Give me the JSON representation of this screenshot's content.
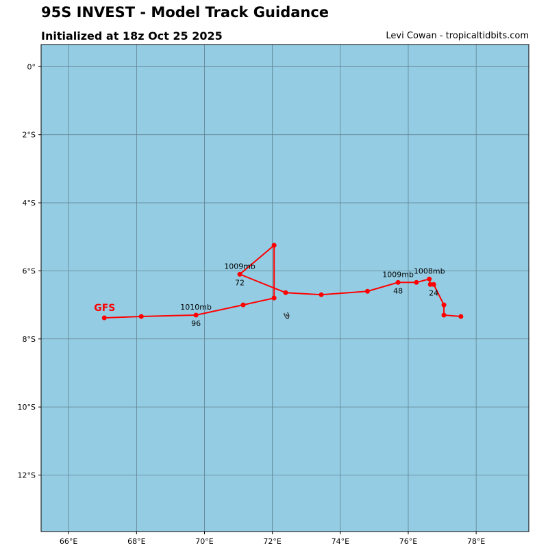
{
  "header": {
    "title": "95S INVEST - Model Track Guidance",
    "subtitle": "Initialized at 18z Oct 25 2025",
    "credit": "Levi Cowan - tropicaltidbits.com"
  },
  "colors": {
    "ocean": "#94cde3",
    "grid": "#5f7f8f",
    "track": "#ff0000"
  },
  "chart_data": {
    "type": "line",
    "xlim": [
      65.19,
      79.55
    ],
    "ylim": [
      -13.66,
      0.65
    ],
    "x_ticks": [
      {
        "v": 66,
        "label": "66°E"
      },
      {
        "v": 68,
        "label": "68°E"
      },
      {
        "v": 70,
        "label": "70°E"
      },
      {
        "v": 72,
        "label": "72°E"
      },
      {
        "v": 74,
        "label": "74°E"
      },
      {
        "v": 76,
        "label": "76°E"
      },
      {
        "v": 78,
        "label": "78°E"
      }
    ],
    "y_ticks": [
      {
        "v": 0,
        "label": "0°"
      },
      {
        "v": -2,
        "label": "2°S"
      },
      {
        "v": -4,
        "label": "4°S"
      },
      {
        "v": -6,
        "label": "6°S"
      },
      {
        "v": -8,
        "label": "8°S"
      },
      {
        "v": -10,
        "label": "10°S"
      },
      {
        "v": -12,
        "label": "12°S"
      }
    ],
    "grid": true,
    "series": [
      {
        "name": "GFS",
        "lon": [
          77.55,
          77.05,
          77.05,
          76.75,
          76.65,
          76.62,
          76.24,
          75.7,
          74.8,
          73.44,
          72.39,
          71.04,
          72.05,
          72.05,
          71.14,
          69.75,
          68.14,
          67.05
        ],
        "lat": [
          -7.34,
          -7.3,
          -7.0,
          -6.4,
          -6.4,
          -6.24,
          -6.34,
          -6.34,
          -6.6,
          -6.7,
          -6.64,
          -6.1,
          -5.25,
          -6.8,
          -7.0,
          -7.3,
          -7.34,
          -7.38
        ]
      }
    ],
    "annotations": [
      {
        "text": "24",
        "lon": 76.75,
        "lat": -6.4,
        "pos": "below"
      },
      {
        "text": "1008mb",
        "lon": 76.62,
        "lat": -6.24,
        "pos": "above"
      },
      {
        "text": "48",
        "lon": 75.7,
        "lat": -6.34,
        "pos": "below"
      },
      {
        "text": "1009mb",
        "lon": 75.7,
        "lat": -6.34,
        "pos": "above"
      },
      {
        "text": "72",
        "lon": 71.04,
        "lat": -6.1,
        "pos": "below"
      },
      {
        "text": "1009mb",
        "lon": 71.04,
        "lat": -6.1,
        "pos": "above"
      },
      {
        "text": "96",
        "lon": 69.75,
        "lat": -7.3,
        "pos": "below"
      },
      {
        "text": "1010mb",
        "lon": 69.75,
        "lat": -7.3,
        "pos": "above"
      }
    ],
    "model_label": {
      "text": "GFS",
      "lon": 67.05,
      "lat": -7.38
    },
    "island": {
      "name": "Diego Garcia",
      "lon": 72.42,
      "lat": -7.32
    }
  }
}
